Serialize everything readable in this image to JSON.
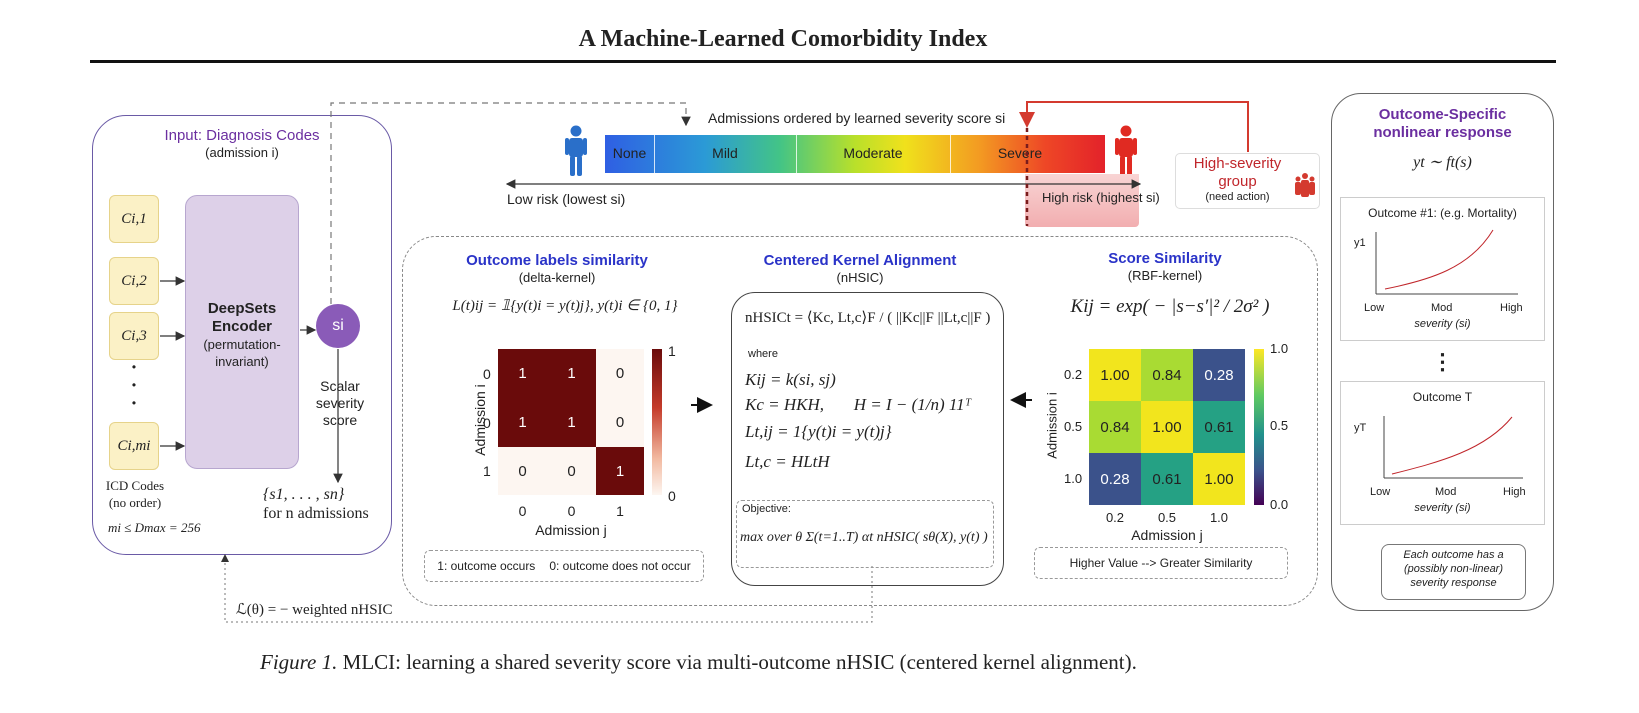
{
  "title": "A Machine-Learned Comorbidity Index",
  "input_panel": {
    "title": "Input: Diagnosis Codes",
    "subtitle": "(admission i)",
    "codes": [
      "C_{i,1}",
      "C_{i,2}",
      "C_{i,3}",
      "C_{i,m_i}"
    ],
    "codes_display": [
      "Ci,1",
      "Ci,2",
      "Ci,3",
      "Ci,mi"
    ],
    "dots": "•",
    "icd_label": "ICD Codes",
    "icd_sub": "(no order)",
    "max_label": "mi ≤ Dmax = 256",
    "encoder_line1": "DeepSets",
    "encoder_line2": "Encoder",
    "encoder_line3": "(permutation-",
    "encoder_line4": "invariant)",
    "score_node": "si",
    "scalar_line1": "Scalar",
    "scalar_line2": "severity",
    "scalar_line3": "score",
    "set_label": "{s1, . . . , sn}",
    "for_label": "for n admissions"
  },
  "severity_bar": {
    "header": "Admissions ordered by learned severity score si",
    "segments": [
      "None",
      "Mild",
      "Moderate",
      "Severe"
    ],
    "low_label": "Low risk (lowest si)",
    "high_label": "High risk (highest si)",
    "group_title_1": "High-severity",
    "group_title_2": "group",
    "group_sub": "(need action)",
    "colors": {
      "low": "#2f6fe0",
      "mid": "#f2e21a",
      "high": "#e5232a"
    }
  },
  "outcome_similarity": {
    "title": "Outcome labels similarity",
    "subtitle": "(delta-kernel)",
    "formula": "L(t)ij = 𝟙{y(t)i = y(t)j},    y(t)i ∈ {0, 1}",
    "ylabel": "Admission i",
    "xlabel": "Admission j",
    "row_ticks": [
      "0",
      "0",
      "1"
    ],
    "col_ticks": [
      "0",
      "0",
      "1"
    ],
    "cells": [
      [
        "1",
        "1",
        "0"
      ],
      [
        "1",
        "1",
        "0"
      ],
      [
        "0",
        "0",
        "1"
      ]
    ],
    "colorbar_ticks": [
      "1",
      "0"
    ],
    "note_a": "1: outcome occurs",
    "note_b": "0: outcome does not occur"
  },
  "cka": {
    "title": "Centered Kernel Alignment",
    "subtitle": "(nHSIC)",
    "formula_main": "nHSICt = ⟨Kc, Lt,c⟩F / ( ||Kc||F ||Lt,c||F )",
    "where": "where",
    "eq1": "Kij = k(si, sj)",
    "eq2": "Kc = HKH,       H = I − (1/n) 11ᵀ",
    "eq3": "Lt,ij = 1{y(t)i = y(t)j}",
    "eq4": "Lt,c = HLtH",
    "objective_label": "Objective:",
    "objective": "max over θ  Σ(t=1..T) αt nHSIC( sθ(X), y(t) )"
  },
  "score_similarity": {
    "title": "Score Similarity",
    "subtitle": "(RBF-kernel)",
    "formula": "Kij = exp( − |s−s′|² / 2σ² )",
    "ylabel": "Admission i",
    "xlabel": "Admission j",
    "row_ticks": [
      "0.2",
      "0.5",
      "1.0"
    ],
    "col_ticks": [
      "0.2",
      "0.5",
      "1.0"
    ],
    "cells": [
      [
        "1.00",
        "0.84",
        "0.28"
      ],
      [
        "0.84",
        "1.00",
        "0.61"
      ],
      [
        "0.28",
        "0.61",
        "1.00"
      ]
    ],
    "colorbar_ticks": [
      "1.0",
      "0.5",
      "0.0"
    ],
    "note": "Higher Value  --> Greater Similarity"
  },
  "loss_label": "ℒ(θ) = − weighted nHSIC",
  "outcome_panel": {
    "title_1": "Outcome-Specific",
    "title_2": "nonlinear response",
    "formula": "yt ∼ ft(s)",
    "plot1_title": "Outcome #1: (e.g. Mortality)",
    "plot1_ylabel": "y1",
    "plot2_title": "Outcome T",
    "plot2_ylabel": "yT",
    "x_ticks": [
      "Low",
      "Mod",
      "High"
    ],
    "x_label": "severity (si)",
    "vdots": "⋮",
    "note_1": "Each outcome has a",
    "note_2": "(possibly non-linear)",
    "note_3": "severity response"
  },
  "caption_label": "Figure 1.",
  "caption_text": "MLCI: learning a shared severity score via multi-outcome nHSIC (centered kernel alignment)."
}
